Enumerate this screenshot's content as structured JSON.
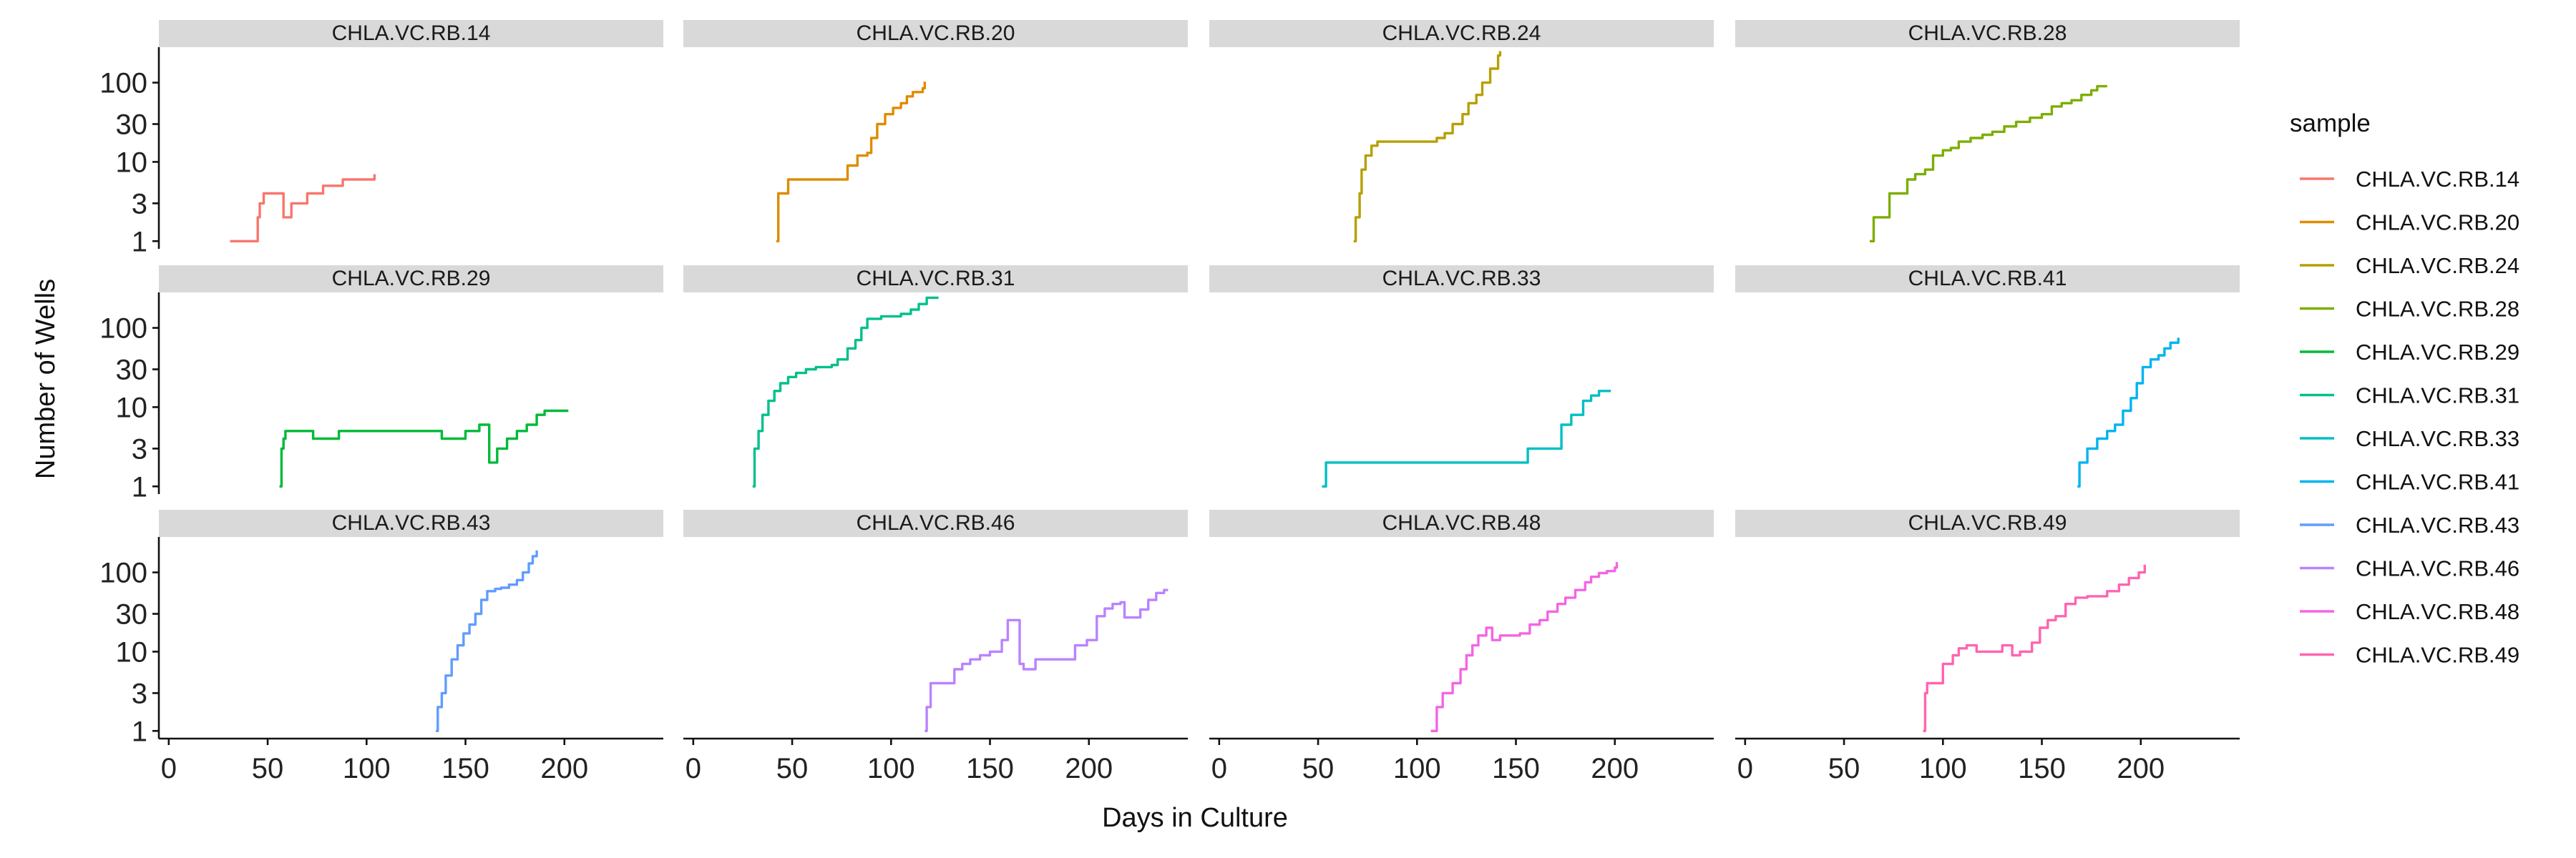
{
  "chart_data": {
    "type": "line",
    "facet_layout": "3 rows x 4 columns, shared axes",
    "xlabel": "Days in Culture",
    "ylabel": "Number of Wells",
    "y_scale": "log",
    "xlim": [
      -5,
      250
    ],
    "ylim": [
      0.8,
      280
    ],
    "x_ticks": [
      0,
      50,
      100,
      150,
      200
    ],
    "y_ticks": [
      1,
      3,
      10,
      30,
      100
    ],
    "grid": false,
    "legend": {
      "title": "sample",
      "position": "right"
    },
    "series": [
      {
        "name": "CHLA.VC.RB.14",
        "color": "#F8766D",
        "points": [
          [
            31,
            1
          ],
          [
            44,
            1
          ],
          [
            45,
            2
          ],
          [
            46,
            3
          ],
          [
            48,
            4
          ],
          [
            53,
            4
          ],
          [
            57,
            4
          ],
          [
            58,
            2
          ],
          [
            59,
            2
          ],
          [
            62,
            3
          ],
          [
            67,
            3
          ],
          [
            70,
            4
          ],
          [
            76,
            4
          ],
          [
            78,
            5
          ],
          [
            85,
            5
          ],
          [
            88,
            6
          ],
          [
            96,
            6
          ],
          [
            103,
            6
          ],
          [
            104,
            7
          ]
        ]
      },
      {
        "name": "CHLA.VC.RB.20",
        "color": "#DE8C00",
        "points": [
          [
            42,
            1
          ],
          [
            43,
            4
          ],
          [
            46,
            4
          ],
          [
            48,
            6
          ],
          [
            54,
            6
          ],
          [
            60,
            6
          ],
          [
            68,
            6
          ],
          [
            75,
            6
          ],
          [
            78,
            9
          ],
          [
            83,
            12
          ],
          [
            88,
            13
          ],
          [
            90,
            20
          ],
          [
            93,
            30
          ],
          [
            97,
            40
          ],
          [
            101,
            48
          ],
          [
            105,
            55
          ],
          [
            108,
            67
          ],
          [
            111,
            76
          ],
          [
            116,
            85
          ],
          [
            117,
            103
          ]
        ]
      },
      {
        "name": "CHLA.VC.RB.24",
        "color": "#B79F00",
        "points": [
          [
            68,
            1
          ],
          [
            69,
            2
          ],
          [
            70,
            2
          ],
          [
            71,
            4
          ],
          [
            72,
            8
          ],
          [
            74,
            12
          ],
          [
            77,
            16
          ],
          [
            80,
            18
          ],
          [
            85,
            18
          ],
          [
            95,
            18
          ],
          [
            105,
            18
          ],
          [
            110,
            20
          ],
          [
            114,
            23
          ],
          [
            118,
            30
          ],
          [
            123,
            40
          ],
          [
            126,
            55
          ],
          [
            130,
            70
          ],
          [
            133,
            100
          ],
          [
            137,
            150
          ],
          [
            141,
            220
          ],
          [
            142,
            250
          ]
        ]
      },
      {
        "name": "CHLA.VC.RB.28",
        "color": "#7CAE00",
        "points": [
          [
            63,
            1
          ],
          [
            65,
            2
          ],
          [
            71,
            2
          ],
          [
            73,
            4
          ],
          [
            78,
            4
          ],
          [
            82,
            6
          ],
          [
            86,
            7
          ],
          [
            91,
            8
          ],
          [
            95,
            12
          ],
          [
            100,
            14
          ],
          [
            104,
            15
          ],
          [
            108,
            18
          ],
          [
            114,
            20
          ],
          [
            120,
            22
          ],
          [
            125,
            24
          ],
          [
            131,
            28
          ],
          [
            137,
            32
          ],
          [
            144,
            36
          ],
          [
            150,
            40
          ],
          [
            155,
            50
          ],
          [
            160,
            55
          ],
          [
            165,
            60
          ],
          [
            170,
            70
          ],
          [
            175,
            80
          ],
          [
            178,
            90
          ],
          [
            183,
            90
          ]
        ]
      },
      {
        "name": "CHLA.VC.RB.29",
        "color": "#00BA38",
        "points": [
          [
            56,
            1
          ],
          [
            57,
            3
          ],
          [
            58,
            4
          ],
          [
            59,
            5
          ],
          [
            62,
            5
          ],
          [
            67,
            5
          ],
          [
            73,
            4
          ],
          [
            85,
            4
          ],
          [
            86,
            5
          ],
          [
            100,
            5
          ],
          [
            120,
            5
          ],
          [
            137,
            5
          ],
          [
            138,
            4
          ],
          [
            148,
            4
          ],
          [
            150,
            5
          ],
          [
            155,
            5
          ],
          [
            157,
            6
          ],
          [
            161,
            6
          ],
          [
            162,
            2
          ],
          [
            164,
            2
          ],
          [
            166,
            3
          ],
          [
            171,
            4
          ],
          [
            176,
            5
          ],
          [
            181,
            6
          ],
          [
            186,
            8
          ],
          [
            190,
            9
          ],
          [
            202,
            9
          ]
        ]
      },
      {
        "name": "CHLA.VC.RB.31",
        "color": "#00C08B",
        "points": [
          [
            30,
            1
          ],
          [
            31,
            3
          ],
          [
            33,
            5
          ],
          [
            35,
            8
          ],
          [
            38,
            12
          ],
          [
            41,
            16
          ],
          [
            44,
            20
          ],
          [
            48,
            24
          ],
          [
            52,
            27
          ],
          [
            57,
            30
          ],
          [
            62,
            32
          ],
          [
            70,
            34
          ],
          [
            73,
            40
          ],
          [
            78,
            55
          ],
          [
            82,
            70
          ],
          [
            85,
            100
          ],
          [
            88,
            130
          ],
          [
            95,
            140
          ],
          [
            105,
            150
          ],
          [
            110,
            170
          ],
          [
            114,
            200
          ],
          [
            118,
            240
          ],
          [
            124,
            240
          ]
        ]
      },
      {
        "name": "CHLA.VC.RB.33",
        "color": "#00BFC4",
        "points": [
          [
            52,
            1
          ],
          [
            54,
            2
          ],
          [
            80,
            2
          ],
          [
            120,
            2
          ],
          [
            150,
            2
          ],
          [
            156,
            3
          ],
          [
            170,
            3
          ],
          [
            173,
            6
          ],
          [
            178,
            8
          ],
          [
            184,
            12
          ],
          [
            188,
            14
          ],
          [
            192,
            16
          ],
          [
            198,
            16
          ]
        ]
      },
      {
        "name": "CHLA.VC.RB.41",
        "color": "#00B4F0",
        "points": [
          [
            168,
            1
          ],
          [
            169,
            2
          ],
          [
            173,
            3
          ],
          [
            178,
            4
          ],
          [
            183,
            5
          ],
          [
            187,
            6
          ],
          [
            191,
            9
          ],
          [
            195,
            13
          ],
          [
            198,
            20
          ],
          [
            201,
            32
          ],
          [
            205,
            40
          ],
          [
            209,
            45
          ],
          [
            212,
            55
          ],
          [
            215,
            65
          ],
          [
            219,
            75
          ]
        ]
      },
      {
        "name": "CHLA.VC.RB.43",
        "color": "#619CFF",
        "points": [
          [
            135,
            1
          ],
          [
            136,
            2
          ],
          [
            138,
            3
          ],
          [
            140,
            5
          ],
          [
            143,
            8
          ],
          [
            146,
            12
          ],
          [
            149,
            17
          ],
          [
            152,
            22
          ],
          [
            155,
            30
          ],
          [
            158,
            45
          ],
          [
            161,
            58
          ],
          [
            165,
            62
          ],
          [
            168,
            64
          ],
          [
            172,
            70
          ],
          [
            176,
            80
          ],
          [
            179,
            100
          ],
          [
            182,
            130
          ],
          [
            184,
            160
          ],
          [
            186,
            190
          ]
        ]
      },
      {
        "name": "CHLA.VC.RB.46",
        "color": "#B983FF",
        "points": [
          [
            117,
            1
          ],
          [
            118,
            2
          ],
          [
            120,
            4
          ],
          [
            124,
            4
          ],
          [
            128,
            4
          ],
          [
            132,
            6
          ],
          [
            136,
            7
          ],
          [
            140,
            8
          ],
          [
            145,
            9
          ],
          [
            150,
            10
          ],
          [
            156,
            14
          ],
          [
            159,
            25
          ],
          [
            163,
            25
          ],
          [
            165,
            7
          ],
          [
            167,
            6
          ],
          [
            171,
            6
          ],
          [
            173,
            8
          ],
          [
            180,
            8
          ],
          [
            188,
            8
          ],
          [
            193,
            12
          ],
          [
            199,
            14
          ],
          [
            204,
            28
          ],
          [
            208,
            35
          ],
          [
            212,
            40
          ],
          [
            216,
            42
          ],
          [
            218,
            27
          ],
          [
            222,
            27
          ],
          [
            226,
            34
          ],
          [
            230,
            45
          ],
          [
            234,
            55
          ],
          [
            238,
            60
          ],
          [
            240,
            60
          ]
        ]
      },
      {
        "name": "CHLA.VC.RB.48",
        "color": "#F564E3",
        "points": [
          [
            107,
            1
          ],
          [
            110,
            2
          ],
          [
            113,
            3
          ],
          [
            118,
            4
          ],
          [
            122,
            6
          ],
          [
            125,
            9
          ],
          [
            128,
            12
          ],
          [
            131,
            16
          ],
          [
            135,
            20
          ],
          [
            138,
            14
          ],
          [
            142,
            16
          ],
          [
            147,
            16
          ],
          [
            152,
            17
          ],
          [
            157,
            22
          ],
          [
            162,
            25
          ],
          [
            166,
            32
          ],
          [
            171,
            40
          ],
          [
            175,
            48
          ],
          [
            180,
            60
          ],
          [
            185,
            75
          ],
          [
            188,
            88
          ],
          [
            192,
            98
          ],
          [
            196,
            104
          ],
          [
            200,
            115
          ],
          [
            201,
            135
          ]
        ]
      },
      {
        "name": "CHLA.VC.RB.49",
        "color": "#FF64B0",
        "points": [
          [
            90,
            1
          ],
          [
            91,
            3
          ],
          [
            92,
            4
          ],
          [
            95,
            4
          ],
          [
            100,
            7
          ],
          [
            105,
            9
          ],
          [
            108,
            11
          ],
          [
            112,
            12
          ],
          [
            117,
            10
          ],
          [
            122,
            10
          ],
          [
            126,
            10
          ],
          [
            130,
            12
          ],
          [
            135,
            9
          ],
          [
            139,
            10
          ],
          [
            145,
            13
          ],
          [
            149,
            20
          ],
          [
            153,
            25
          ],
          [
            157,
            28
          ],
          [
            162,
            40
          ],
          [
            167,
            48
          ],
          [
            173,
            50
          ],
          [
            178,
            50
          ],
          [
            183,
            58
          ],
          [
            189,
            70
          ],
          [
            194,
            85
          ],
          [
            199,
            100
          ],
          [
            202,
            125
          ]
        ]
      }
    ]
  },
  "legend_items": [
    "CHLA.VC.RB.14",
    "CHLA.VC.RB.20",
    "CHLA.VC.RB.24",
    "CHLA.VC.RB.28",
    "CHLA.VC.RB.29",
    "CHLA.VC.RB.31",
    "CHLA.VC.RB.33",
    "CHLA.VC.RB.41",
    "CHLA.VC.RB.43",
    "CHLA.VC.RB.46",
    "CHLA.VC.RB.48",
    "CHLA.VC.RB.49"
  ]
}
